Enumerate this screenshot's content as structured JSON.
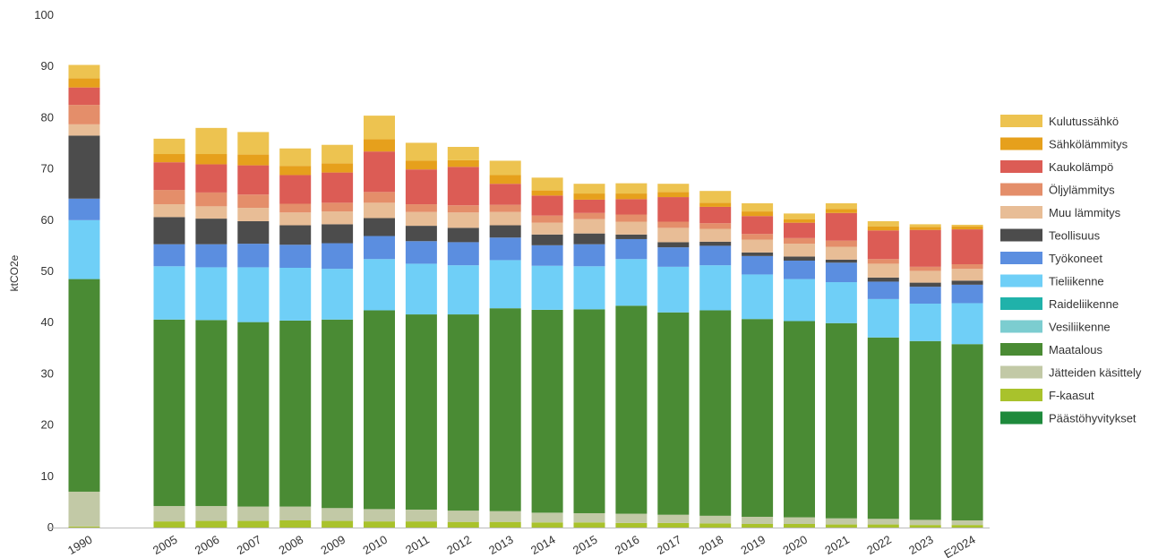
{
  "chart_data": {
    "type": "bar",
    "stacked": true,
    "title": "",
    "xlabel": "",
    "ylabel": "ktCO2e",
    "ylim": [
      0,
      100
    ],
    "yticks": [
      0,
      10,
      20,
      30,
      40,
      50,
      60,
      70,
      80,
      90,
      100
    ],
    "grid": false,
    "legend_position": "right",
    "categories": [
      "1990",
      "2005",
      "2006",
      "2007",
      "2008",
      "2009",
      "2010",
      "2011",
      "2012",
      "2013",
      "2014",
      "2015",
      "2016",
      "2017",
      "2018",
      "2019",
      "2020",
      "2021",
      "2022",
      "2023",
      "E2024"
    ],
    "series": [
      {
        "name": "Päästöhyvitykset",
        "color": "#1e8a3c",
        "values": [
          0,
          0,
          0,
          0,
          0,
          0,
          0,
          0,
          0,
          0,
          0,
          0,
          0,
          0,
          0,
          0,
          0,
          0,
          0,
          0,
          0
        ]
      },
      {
        "name": "F-kaasut",
        "color": "#a9c22c",
        "values": [
          0.2,
          1.2,
          1.3,
          1.3,
          1.4,
          1.3,
          1.2,
          1.2,
          1.1,
          1.1,
          1.0,
          1.0,
          0.9,
          0.9,
          0.8,
          0.7,
          0.7,
          0.6,
          0.6,
          0.5,
          0.5
        ]
      },
      {
        "name": "Jätteiden käsittely",
        "color": "#c2c9a6",
        "values": [
          6.8,
          3.0,
          2.9,
          2.8,
          2.7,
          2.5,
          2.4,
          2.3,
          2.2,
          2.1,
          1.9,
          1.8,
          1.8,
          1.6,
          1.5,
          1.4,
          1.3,
          1.2,
          1.1,
          1.0,
          0.9
        ]
      },
      {
        "name": "Maatalous",
        "color": "#4a8b34",
        "values": [
          41.5,
          36.4,
          36.3,
          36.0,
          36.3,
          36.8,
          38.8,
          38.1,
          38.3,
          39.6,
          39.6,
          39.8,
          40.6,
          39.5,
          40.1,
          38.6,
          38.3,
          38.1,
          35.4,
          34.9,
          34.4
        ]
      },
      {
        "name": "Vesiliikenne",
        "color": "#7ccdd0",
        "values": [
          0,
          0,
          0,
          0,
          0,
          0,
          0,
          0,
          0,
          0,
          0,
          0,
          0,
          0,
          0,
          0,
          0,
          0,
          0,
          0,
          0
        ]
      },
      {
        "name": "Raideliikenne",
        "color": "#20b2aa",
        "values": [
          0,
          0,
          0,
          0,
          0,
          0,
          0,
          0,
          0,
          0,
          0,
          0,
          0,
          0,
          0,
          0,
          0,
          0,
          0,
          0,
          0
        ]
      },
      {
        "name": "Tieliikenne",
        "color": "#6fcff7",
        "values": [
          11.5,
          10.4,
          10.3,
          10.7,
          10.3,
          9.9,
          10.0,
          9.9,
          9.6,
          9.4,
          8.6,
          8.4,
          9.1,
          8.9,
          8.8,
          8.7,
          8.2,
          8.0,
          7.5,
          7.3,
          8.0
        ]
      },
      {
        "name": "Työkoneet",
        "color": "#5b8ee0",
        "values": [
          4.2,
          4.3,
          4.5,
          4.6,
          4.5,
          5.0,
          4.5,
          4.4,
          4.5,
          4.4,
          4.0,
          4.3,
          3.9,
          3.8,
          3.8,
          3.6,
          3.6,
          3.8,
          3.4,
          3.3,
          3.6
        ]
      },
      {
        "name": "Teollisuus",
        "color": "#4c4c4c",
        "values": [
          12.3,
          5.3,
          5.0,
          4.4,
          3.8,
          3.7,
          3.5,
          3.0,
          2.8,
          2.4,
          2.1,
          2.1,
          0.9,
          1.0,
          0.8,
          0.7,
          0.8,
          0.6,
          0.8,
          0.8,
          0.8
        ]
      },
      {
        "name": "Muu lämmitys",
        "color": "#e8bd96",
        "values": [
          2.2,
          2.5,
          2.4,
          2.6,
          2.5,
          2.5,
          3.0,
          2.7,
          3.0,
          2.6,
          2.3,
          2.8,
          2.5,
          2.8,
          2.5,
          2.5,
          2.5,
          2.5,
          2.7,
          2.3,
          2.3
        ]
      },
      {
        "name": "Öljylämmitys",
        "color": "#e48e6a",
        "values": [
          3.8,
          2.8,
          2.7,
          2.6,
          1.7,
          1.7,
          2.1,
          1.5,
          1.4,
          1.4,
          1.4,
          1.2,
          1.4,
          1.2,
          1.1,
          1.1,
          1.1,
          1.2,
          0.9,
          0.8,
          0.9
        ]
      },
      {
        "name": "Kaukolämpö",
        "color": "#dc5c55",
        "values": [
          3.4,
          5.4,
          5.5,
          5.7,
          5.6,
          5.9,
          7.9,
          6.8,
          7.5,
          4.1,
          3.9,
          2.6,
          3.0,
          4.8,
          3.2,
          3.5,
          3.0,
          5.4,
          5.6,
          7.2,
          6.8
        ]
      },
      {
        "name": "Sähkölämmitys",
        "color": "#e6a01c",
        "values": [
          1.8,
          1.6,
          2.0,
          2.1,
          1.8,
          1.8,
          2.4,
          1.7,
          1.3,
          1.7,
          1.0,
          1.2,
          1.1,
          1.0,
          0.8,
          0.9,
          0.7,
          0.8,
          0.8,
          0.6,
          0.6
        ]
      },
      {
        "name": "Kulutussähkö",
        "color": "#edc350",
        "values": [
          2.6,
          3.0,
          5.1,
          4.4,
          3.4,
          3.6,
          4.6,
          3.5,
          2.6,
          2.8,
          2.5,
          1.9,
          2.0,
          1.6,
          2.3,
          1.6,
          1.1,
          1.1,
          1.0,
          0.5,
          0.3
        ]
      }
    ]
  }
}
